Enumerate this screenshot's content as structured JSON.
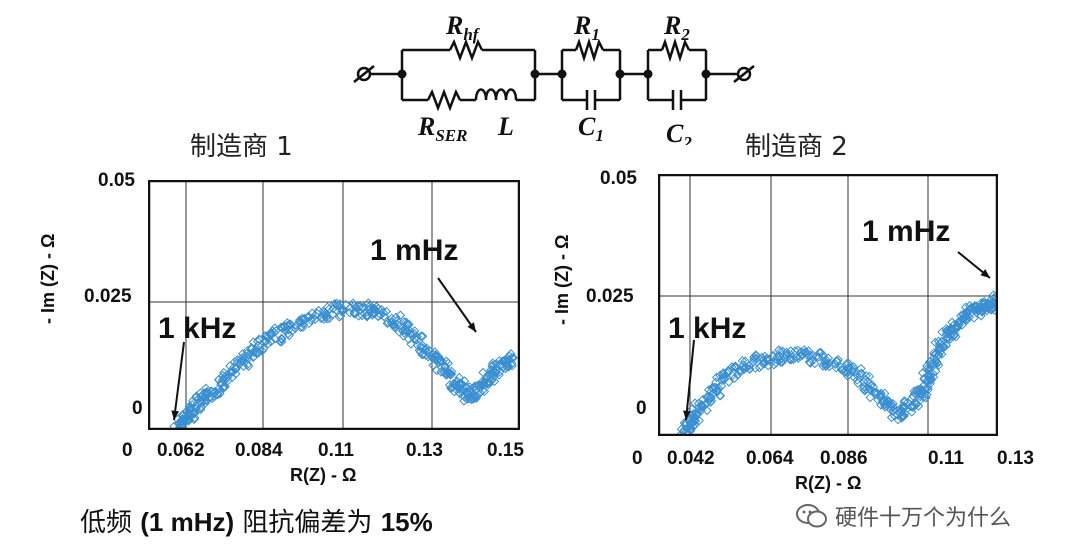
{
  "circuit": {
    "labels": {
      "rhf": "R",
      "rhf_sub": "hf",
      "rser": "R",
      "rser_sub": "SER",
      "l": "L",
      "r1": "R",
      "r1_sub": "1",
      "c1": "C",
      "c1_sub": "1",
      "r2": "R",
      "r2_sub": "2",
      "c2": "C",
      "c2_sub": "2"
    }
  },
  "charts_text": {
    "left_title": "制造商 1",
    "right_title": "制造商 2"
  },
  "chart_data": [
    {
      "type": "scatter",
      "title": "制造商 1",
      "xlabel": "R(Z) - Ω",
      "ylabel": "- Im (Z) - Ω",
      "x_ticks": [
        "0",
        "0.062",
        "0.084",
        "0.11",
        "0.13",
        "0.15"
      ],
      "y_ticks": [
        "0",
        "0.025",
        "0.05"
      ],
      "xlim": [
        0.05,
        0.15
      ],
      "ylim": [
        0,
        0.05
      ],
      "grid": true,
      "marker": "diamond",
      "color": "#3a8fd0",
      "annotations": [
        {
          "text": "1 kHz",
          "x": 0.058,
          "y": 0.0
        },
        {
          "text": "1 mHz",
          "x": 0.148,
          "y": 0.015
        }
      ],
      "series": [
        {
          "points": [
            [
              0.058,
              0.0
            ],
            [
              0.06,
              0.002
            ],
            [
              0.062,
              0.004
            ],
            [
              0.065,
              0.006
            ],
            [
              0.068,
              0.008
            ],
            [
              0.072,
              0.011
            ],
            [
              0.076,
              0.014
            ],
            [
              0.08,
              0.017
            ],
            [
              0.085,
              0.019
            ],
            [
              0.09,
              0.021
            ],
            [
              0.096,
              0.023
            ],
            [
              0.102,
              0.024
            ],
            [
              0.108,
              0.024
            ],
            [
              0.113,
              0.023
            ],
            [
              0.118,
              0.021
            ],
            [
              0.122,
              0.018
            ],
            [
              0.126,
              0.015
            ],
            [
              0.13,
              0.012
            ],
            [
              0.133,
              0.009
            ],
            [
              0.136,
              0.007
            ],
            [
              0.139,
              0.008
            ],
            [
              0.142,
              0.011
            ],
            [
              0.145,
              0.013
            ],
            [
              0.148,
              0.014
            ]
          ]
        }
      ]
    },
    {
      "type": "scatter",
      "title": "制造商 2",
      "xlabel": "R(Z) - Ω",
      "ylabel": "- Im (Z) - Ω",
      "x_ticks": [
        "0",
        "0.042",
        "0.064",
        "0.086",
        "0.11",
        "0.13"
      ],
      "y_ticks": [
        "0",
        "0.025",
        "0.05"
      ],
      "xlim": [
        0.03,
        0.13
      ],
      "ylim": [
        0,
        0.05
      ],
      "grid": true,
      "marker": "diamond",
      "color": "#3a8fd0",
      "annotations": [
        {
          "text": "1 kHz",
          "x": 0.038,
          "y": 0.0
        },
        {
          "text": "1 mHz",
          "x": 0.128,
          "y": 0.026
        }
      ],
      "series": [
        {
          "points": [
            [
              0.038,
              0.0
            ],
            [
              0.04,
              0.003
            ],
            [
              0.043,
              0.006
            ],
            [
              0.047,
              0.009
            ],
            [
              0.052,
              0.012
            ],
            [
              0.058,
              0.014
            ],
            [
              0.064,
              0.015
            ],
            [
              0.07,
              0.0155
            ],
            [
              0.076,
              0.015
            ],
            [
              0.082,
              0.014
            ],
            [
              0.088,
              0.012
            ],
            [
              0.093,
              0.009
            ],
            [
              0.097,
              0.006
            ],
            [
              0.101,
              0.004
            ],
            [
              0.105,
              0.006
            ],
            [
              0.108,
              0.009
            ],
            [
              0.11,
              0.012
            ],
            [
              0.112,
              0.016
            ],
            [
              0.115,
              0.019
            ],
            [
              0.118,
              0.021
            ],
            [
              0.121,
              0.023
            ],
            [
              0.124,
              0.024
            ],
            [
              0.127,
              0.025
            ],
            [
              0.13,
              0.026
            ]
          ]
        }
      ]
    }
  ],
  "footer": {
    "text_cn_1": "低频 ",
    "text_en": "(1 mHz)",
    "text_cn_2": " 阻抗偏差为 ",
    "percent": "15%"
  },
  "watermark": {
    "text": "硬件十万个为什么"
  }
}
